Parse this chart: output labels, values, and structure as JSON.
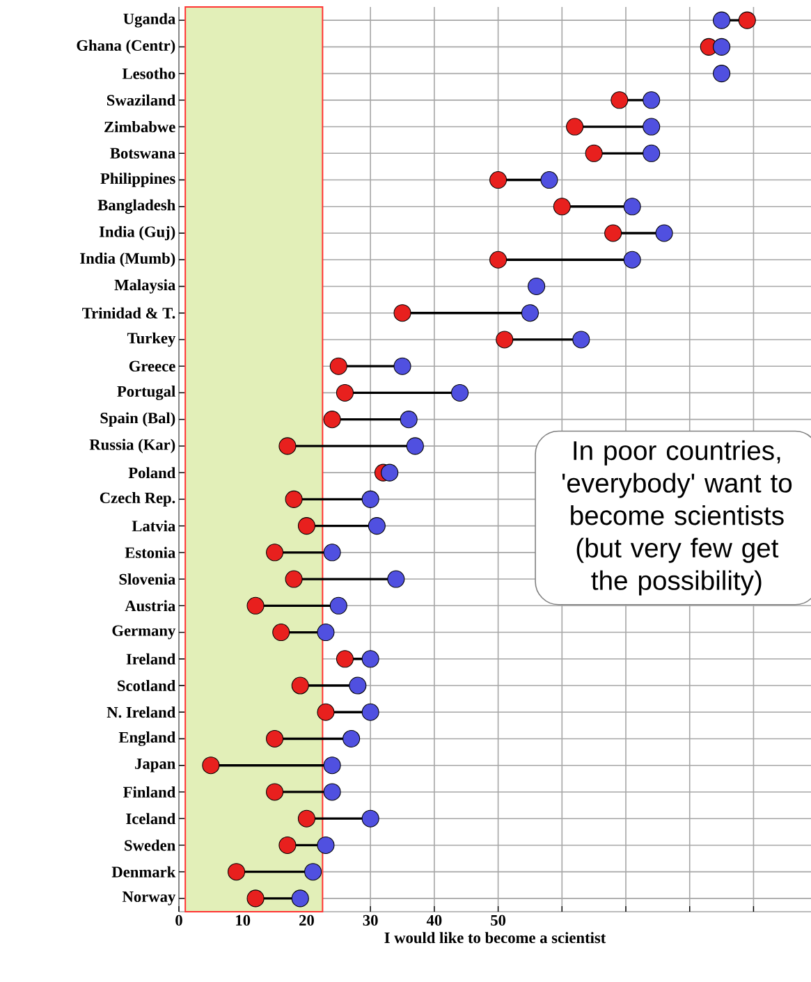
{
  "chart_data": {
    "type": "scatter",
    "orientation": "horizontal",
    "categories": [
      "Uganda",
      "Ghana (Centr)",
      "Lesotho",
      "Swaziland",
      "Zimbabwe",
      "Botswana",
      "Philippines",
      "Bangladesh",
      "India (Guj)",
      "India (Mumb)",
      "Malaysia",
      "Trinidad & T.",
      "Turkey",
      "Greece",
      "Portugal",
      "Spain (Bal)",
      "Russia (Kar)",
      "Poland",
      "Czech Rep.",
      "Latvia",
      "Estonia",
      "Slovenia",
      "Austria",
      "Germany",
      "Ireland",
      "Scotland",
      "N. Ireland",
      "England",
      "Japan",
      "Finland",
      "Iceland",
      "Sweden",
      "Denmark",
      "Norway"
    ],
    "series": [
      {
        "color": "#e8201e",
        "values": [
          89,
          83,
          null,
          69,
          62,
          65,
          50,
          60,
          68,
          50,
          null,
          35,
          51,
          25,
          26,
          24,
          17,
          32,
          18,
          20,
          15,
          18,
          12,
          16,
          26,
          19,
          23,
          15,
          5,
          15,
          20,
          17,
          9,
          12
        ]
      },
      {
        "color": "#5050e0",
        "values": [
          85,
          85,
          85,
          74,
          74,
          74,
          58,
          71,
          76,
          71,
          56,
          55,
          63,
          35,
          44,
          36,
          37,
          33,
          30,
          31,
          24,
          34,
          25,
          23,
          30,
          28,
          30,
          27,
          24,
          24,
          30,
          23,
          21,
          19
        ]
      }
    ],
    "xlim": [
      0,
      99
    ],
    "xticks": [
      0,
      10,
      20,
      30,
      40,
      50,
      {
        "value": 60,
        "label": null
      },
      {
        "value": 70,
        "label": null
      },
      {
        "value": 80,
        "label": null
      },
      {
        "value": 90,
        "label": null
      }
    ],
    "xlabel": "I would like to become a scientist",
    "grid": true,
    "bands": [
      {
        "axis": "x",
        "from": 1,
        "to": 22.5,
        "color": "#e2efb8"
      }
    ],
    "annotations": [
      "In poor countries, 'everybody' want to become scientists (but very few get the possibility)"
    ]
  }
}
